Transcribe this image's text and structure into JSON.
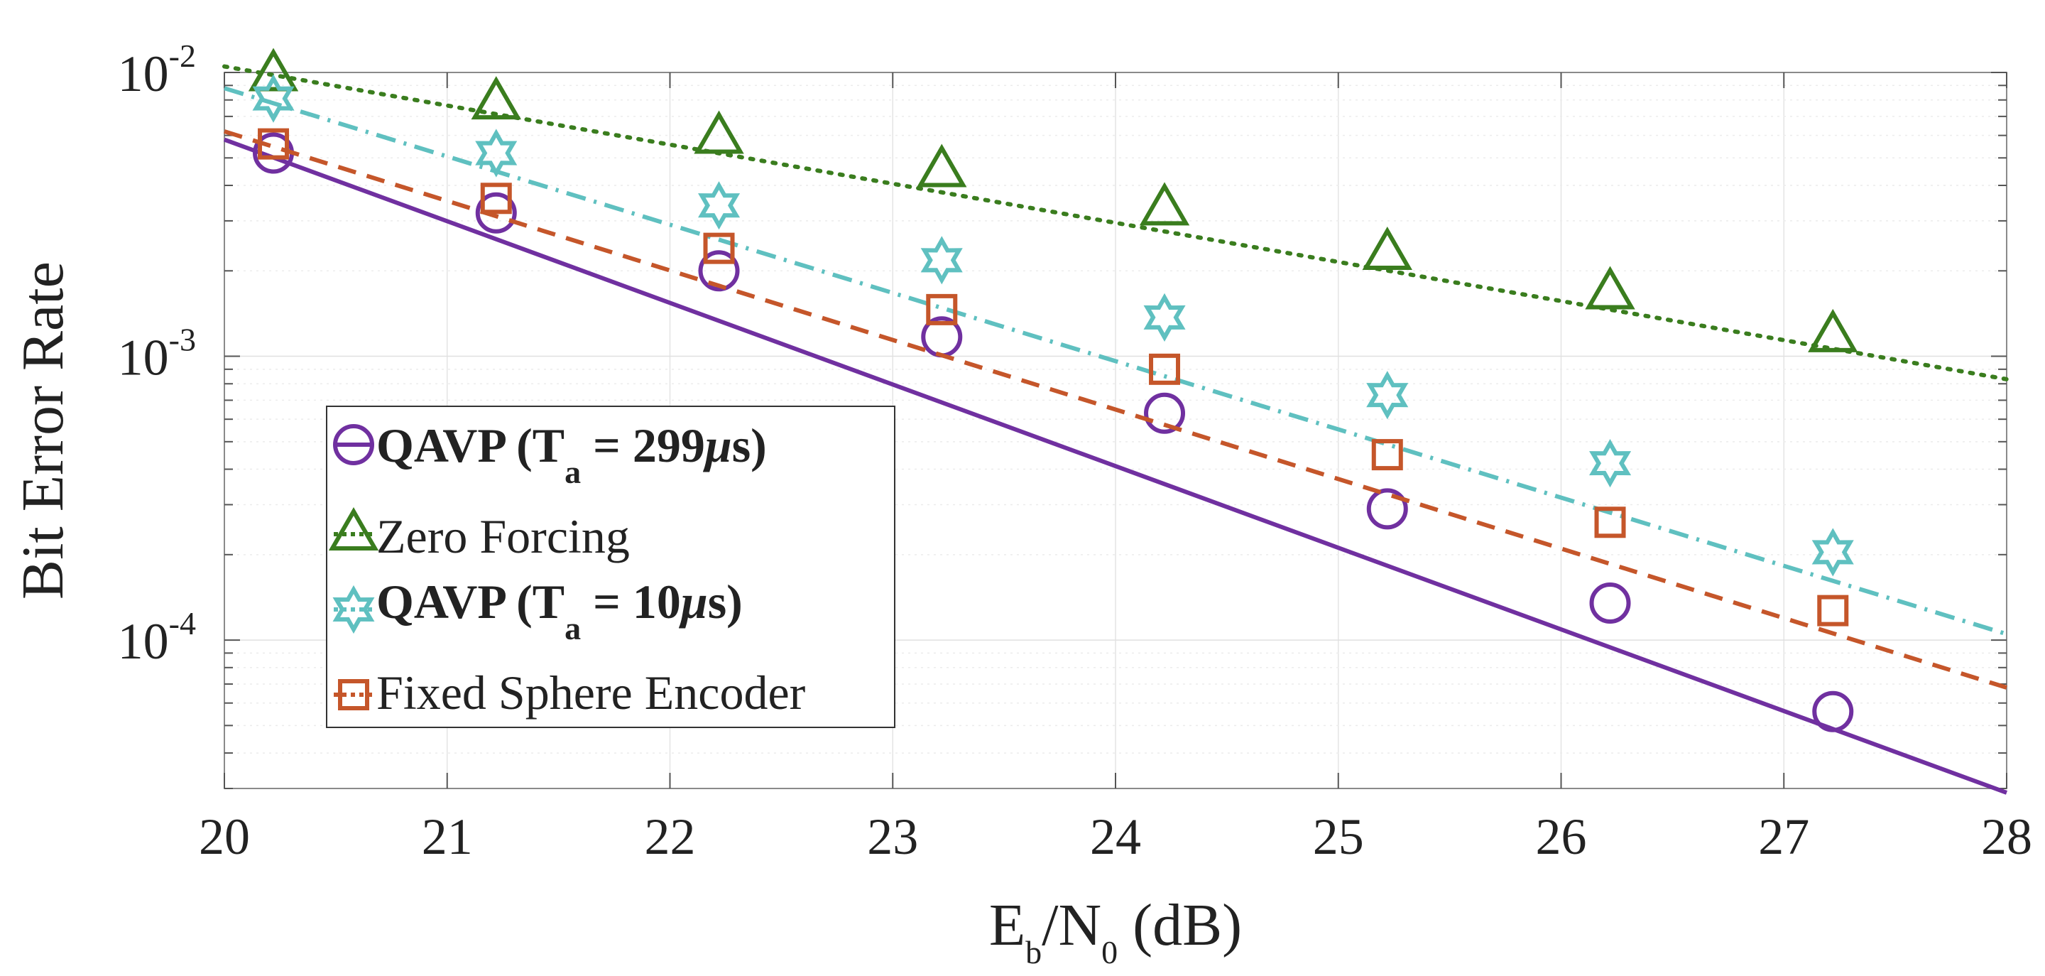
{
  "chart_data": {
    "type": "line",
    "yscale": "log",
    "xlim": [
      20,
      28
    ],
    "ylim": [
      3e-05,
      0.01
    ],
    "grid": true,
    "xticks": [
      20,
      21,
      22,
      23,
      24,
      25,
      26,
      27,
      28
    ],
    "xtick_labels": [
      "20",
      "21",
      "22",
      "23",
      "24",
      "25",
      "26",
      "27",
      "28"
    ],
    "yticks": [
      {
        "value": 0.0001,
        "base": "10",
        "exp": "-4"
      },
      {
        "value": 0.001,
        "base": "10",
        "exp": "-3"
      },
      {
        "value": 0.01,
        "base": "10",
        "exp": "-2"
      }
    ],
    "xlabel": {
      "main": "E",
      "sub1": "b",
      "mid": "/N",
      "sub2": "0",
      "tail": " (dB)"
    },
    "ylabel": "Bit Error Rate",
    "legend_position": "center-left",
    "series": [
      {
        "name": "QAVP (Ta = 299μs)",
        "color": "#7030a0",
        "marker": "circle",
        "linestyle": "solid",
        "line": {
          "x": [
            20,
            28
          ],
          "y": [
            0.0058,
            2.9e-05
          ]
        },
        "x": [
          20.22,
          21.22,
          22.22,
          23.22,
          24.22,
          25.22,
          26.22,
          27.22
        ],
        "y": [
          0.0052,
          0.0032,
          0.002,
          0.00117,
          0.00063,
          0.00029,
          0.000135,
          5.6e-05
        ]
      },
      {
        "name": "Zero Forcing",
        "color": "#3a7d1e",
        "marker": "triangle",
        "linestyle": "dotted",
        "line": {
          "x": [
            20,
            28
          ],
          "y": [
            0.0105,
            0.00083
          ]
        },
        "x": [
          20.22,
          21.22,
          22.22,
          23.22,
          24.22,
          25.22,
          26.22,
          27.22
        ],
        "y": [
          0.0098,
          0.0078,
          0.0059,
          0.0045,
          0.0033,
          0.0023,
          0.00167,
          0.00118
        ]
      },
      {
        "name": "QAVP (Ta = 10μs)",
        "color": "#5fc0c0",
        "marker": "hexagram",
        "linestyle": "dashdot",
        "line": {
          "x": [
            20,
            28
          ],
          "y": [
            0.0088,
            0.000105
          ]
        },
        "x": [
          20.22,
          21.22,
          22.22,
          23.22,
          24.22,
          25.22,
          26.22,
          27.22
        ],
        "y": [
          0.0081,
          0.0052,
          0.0034,
          0.00218,
          0.00137,
          0.00073,
          0.00042,
          0.000204
        ]
      },
      {
        "name": "Fixed Sphere Encoder",
        "color": "#c5562a",
        "marker": "square",
        "linestyle": "dashed",
        "line": {
          "x": [
            20,
            28
          ],
          "y": [
            0.0062,
            6.8e-05
          ]
        },
        "x": [
          20.22,
          21.22,
          22.22,
          23.22,
          24.22,
          25.22,
          26.22,
          27.22
        ],
        "y": [
          0.0056,
          0.0036,
          0.0024,
          0.00146,
          0.0009,
          0.00045,
          0.00026,
          0.000127
        ]
      }
    ],
    "legend": [
      {
        "marker": "circle",
        "bold": true,
        "pre": "QAVP (T",
        "sub": "a",
        "post": " = 299",
        "unit_symbol": "μ",
        "unit": "s)"
      },
      {
        "marker": "triangle",
        "bold": false,
        "text": "Zero Forcing"
      },
      {
        "marker": "hexagram",
        "bold": true,
        "pre": "QAVP (T",
        "sub": "a",
        "post": " = 10",
        "unit_symbol": "μ",
        "unit": "s)"
      },
      {
        "marker": "square",
        "bold": false,
        "text": "Fixed Sphere Encoder"
      }
    ]
  }
}
